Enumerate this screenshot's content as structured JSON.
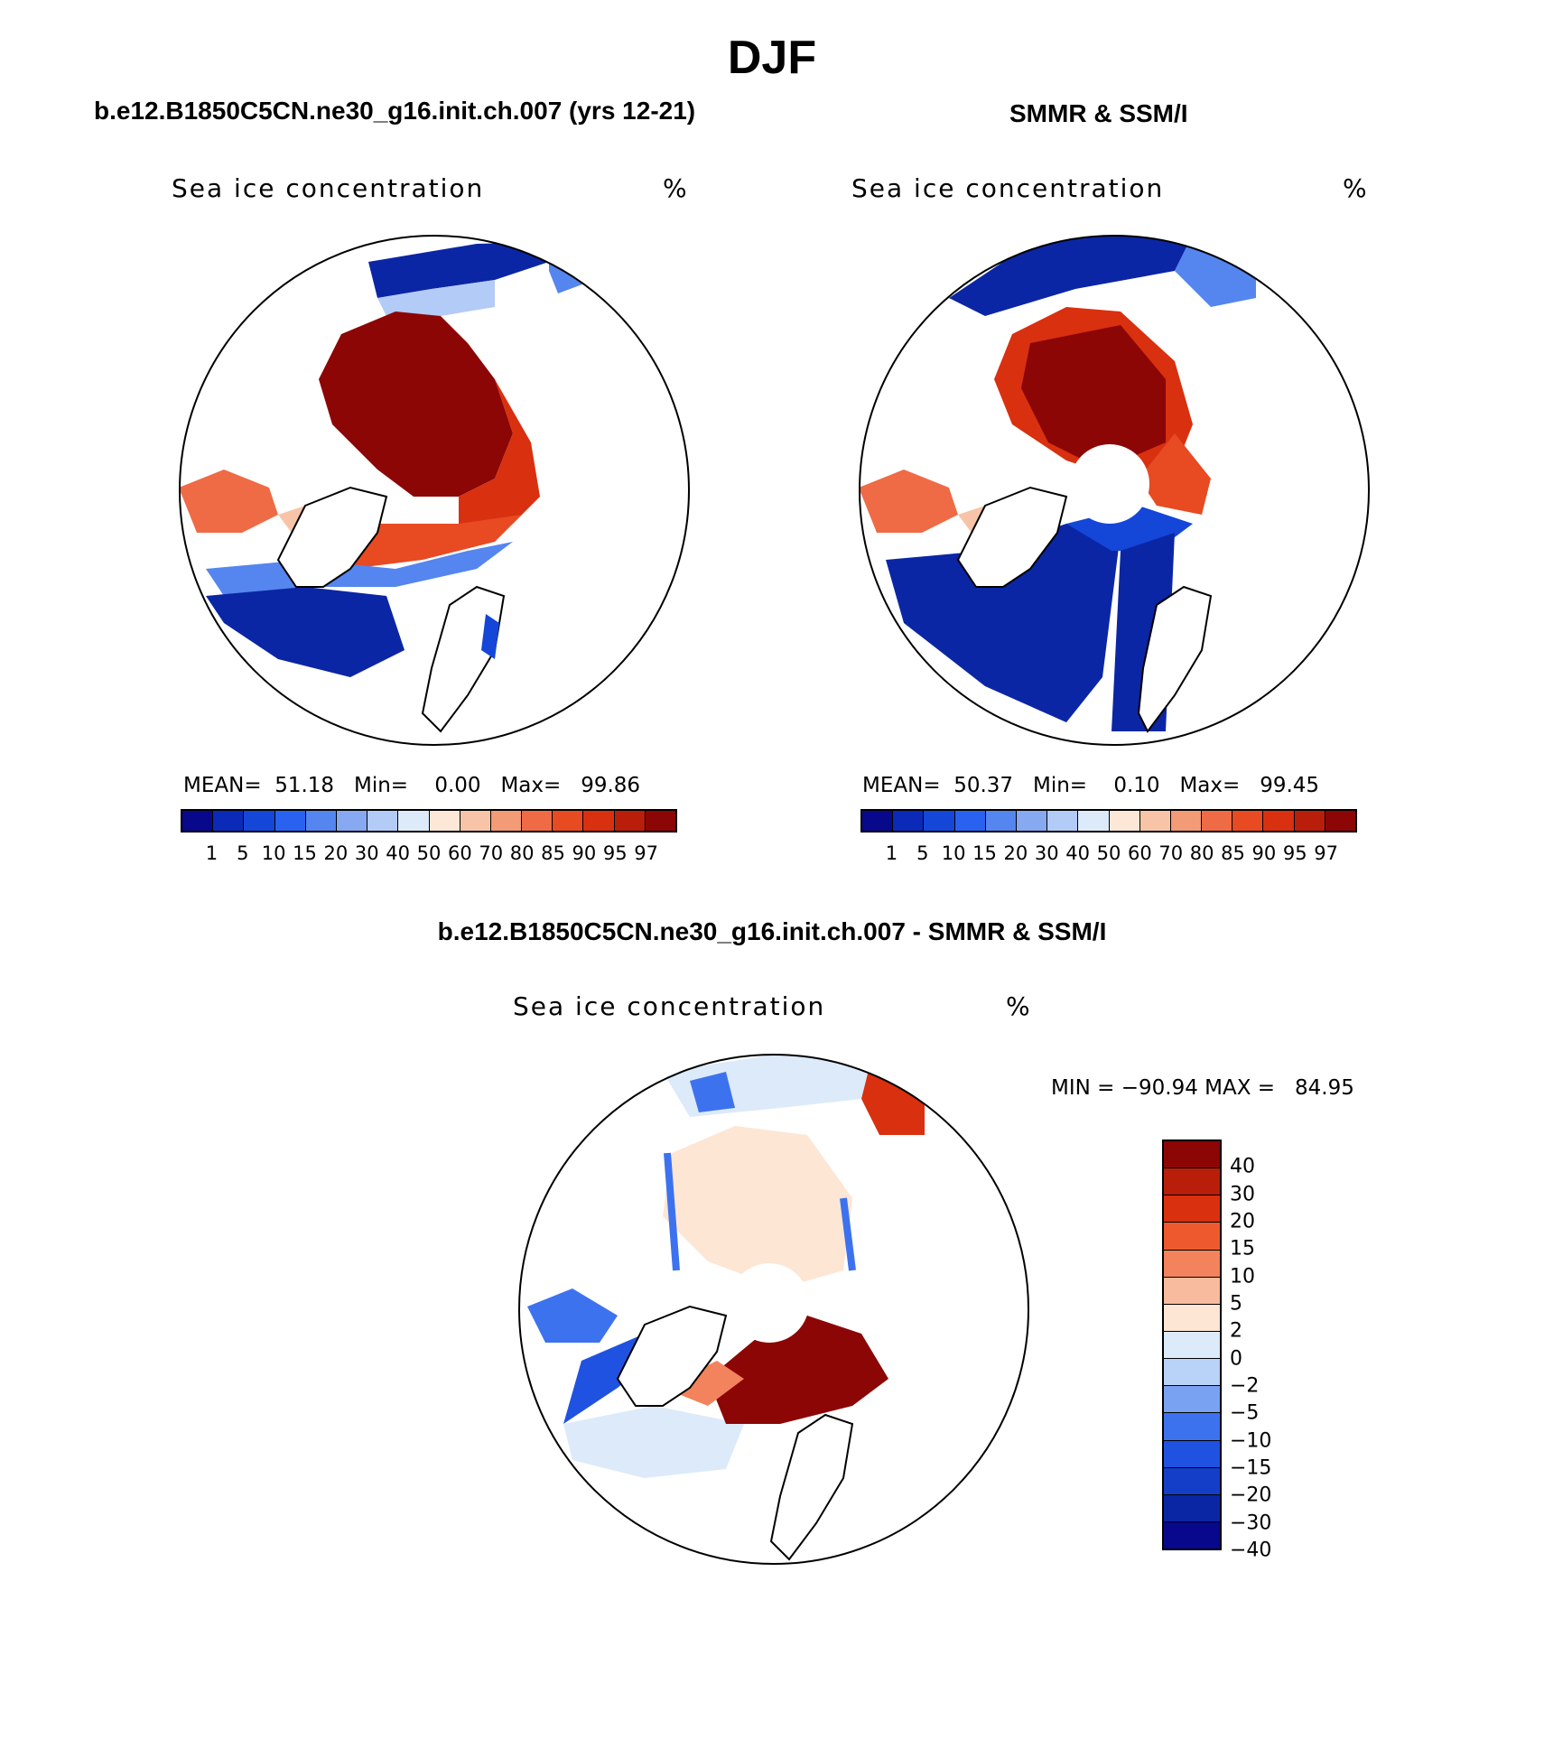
{
  "figure": {
    "title": "DJF",
    "panel_left_title": "b.e12.B1850C5CN.ne30_g16.init.ch.007 (yrs 12-21)",
    "panel_right_title": "SMMR & SSM/I",
    "panel_diff_title": "b.e12.B1850C5CN.ne30_g16.init.ch.007 - SMMR & SSM/I"
  },
  "chart_data": [
    {
      "type": "heatmap",
      "projection": "north polar stereographic",
      "variable_label": "Sea ice concentration",
      "units": "%",
      "stats_text": "MEAN=  51.18   Min=    0.00   Max=   99.86",
      "stats": {
        "mean": 51.18,
        "min": 0.0,
        "max": 99.86
      },
      "colorbar_levels": [
        "1",
        "5",
        "10",
        "15",
        "20",
        "30",
        "40",
        "50",
        "60",
        "70",
        "80",
        "85",
        "90",
        "95",
        "97"
      ],
      "colorbar_colors": [
        "#08088c",
        "#0b2ab8",
        "#1446d8",
        "#2a62f0",
        "#5585ee",
        "#86a9f2",
        "#b3cbf7",
        "#dceaf9",
        "#fde7d6",
        "#f8c4a8",
        "#f39a76",
        "#ee6b45",
        "#e84a22",
        "#d9300f",
        "#b81e0a",
        "#8c0606"
      ]
    },
    {
      "type": "heatmap",
      "projection": "north polar stereographic",
      "variable_label": "Sea ice concentration",
      "units": "%",
      "stats_text": "MEAN=  50.37   Min=    0.10   Max=   99.45",
      "stats": {
        "mean": 50.37,
        "min": 0.1,
        "max": 99.45
      },
      "colorbar_levels": [
        "1",
        "5",
        "10",
        "15",
        "20",
        "30",
        "40",
        "50",
        "60",
        "70",
        "80",
        "85",
        "90",
        "95",
        "97"
      ],
      "colorbar_colors": [
        "#08088c",
        "#0b2ab8",
        "#1446d8",
        "#2a62f0",
        "#5585ee",
        "#86a9f2",
        "#b3cbf7",
        "#dceaf9",
        "#fde7d6",
        "#f8c4a8",
        "#f39a76",
        "#ee6b45",
        "#e84a22",
        "#d9300f",
        "#b81e0a",
        "#8c0606"
      ]
    },
    {
      "type": "heatmap",
      "projection": "north polar stereographic",
      "variable_label": "Sea ice concentration",
      "units": "%",
      "stats_text": "MIN = −90.94 MAX =   84.95",
      "stats": {
        "min": -90.94,
        "max": 84.95
      },
      "colorbar_levels": [
        "40",
        "30",
        "20",
        "15",
        "10",
        "5",
        "2",
        "0",
        "−2",
        "−5",
        "−10",
        "−15",
        "−20",
        "−30",
        "−40"
      ],
      "colorbar_colors": [
        "#8c0606",
        "#b81e0a",
        "#d9300f",
        "#ee5a2e",
        "#f3835c",
        "#f8bb9e",
        "#fde6d4",
        "#dceaf9",
        "#b9d2f8",
        "#7aa2f2",
        "#3d72ef",
        "#1f52e0",
        "#143ec8",
        "#0b26a4",
        "#08088c"
      ]
    }
  ]
}
